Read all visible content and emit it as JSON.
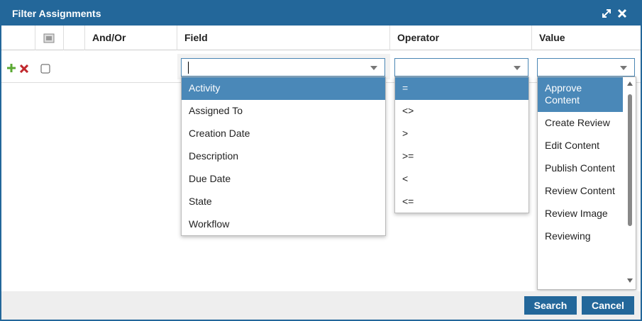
{
  "dialog": {
    "title": "Filter Assignments"
  },
  "table": {
    "headers": [
      "And/Or",
      "Field",
      "Operator",
      "Value"
    ]
  },
  "field_options": [
    "Activity",
    "Assigned To",
    "Creation Date",
    "Description",
    "Due Date",
    "State",
    "Workflow"
  ],
  "operator_options": [
    "=",
    "<>",
    ">",
    ">=",
    "<",
    "<="
  ],
  "value_options": [
    "Approve Content",
    "Create Review",
    "Edit Content",
    "Publish Content",
    "Review Content",
    "Review Image",
    "Reviewing"
  ],
  "buttons": [
    "Search",
    "Cancel"
  ]
}
